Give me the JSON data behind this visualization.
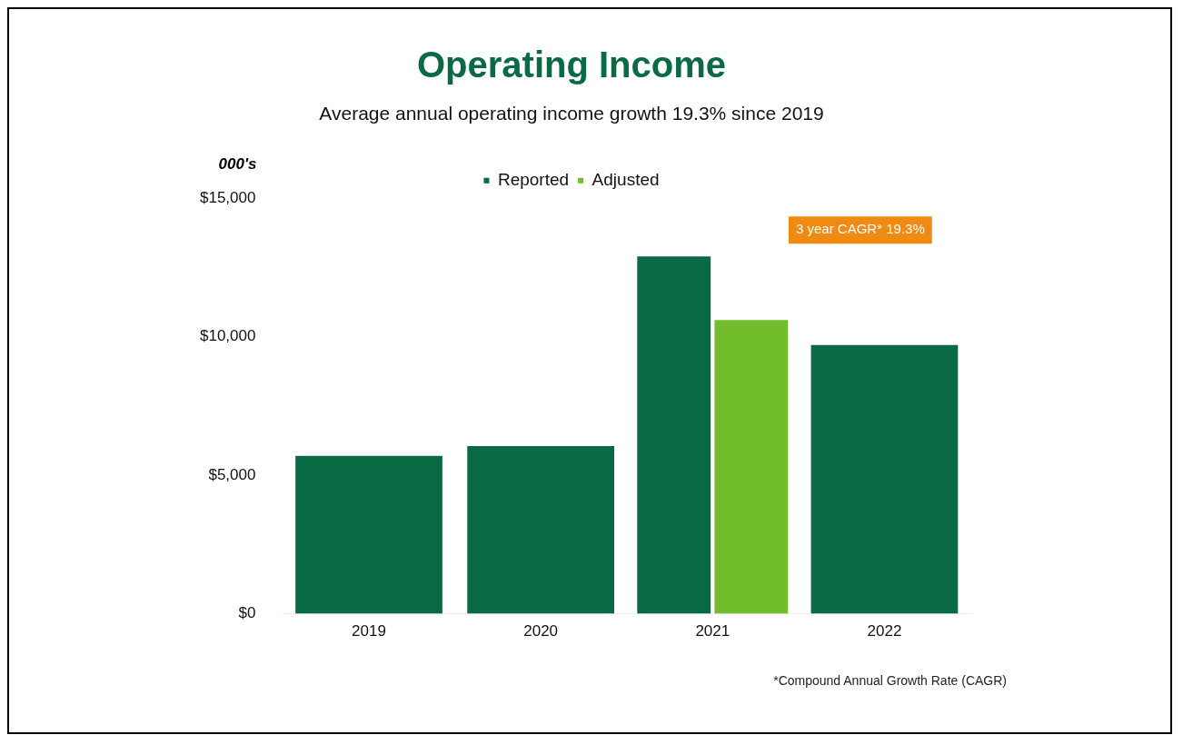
{
  "chart_data": {
    "type": "bar",
    "title": "Operating Income",
    "subtitle": "Average annual operating income growth 19.3% since 2019",
    "ylabel": "000's",
    "categories": [
      "2019",
      "2020",
      "2021",
      "2022"
    ],
    "series": [
      {
        "name": "Reported",
        "color": "#0a6a44",
        "values": [
          5700,
          6050,
          12900,
          9700
        ]
      },
      {
        "name": "Adjusted",
        "color": "#72bd2c",
        "values": [
          null,
          null,
          10600,
          null
        ]
      }
    ],
    "ylim": [
      0,
      15000
    ],
    "yticks": [
      {
        "value": 0,
        "label": "$0"
      },
      {
        "value": 5000,
        "label": "$5,000"
      },
      {
        "value": 10000,
        "label": "$10,000"
      },
      {
        "value": 15000,
        "label": "$15,000"
      }
    ],
    "grid": false,
    "legend": "top",
    "annotations": [
      "3 year CAGR* 19.3%",
      "*Compound Annual Growth Rate (CAGR)"
    ]
  }
}
